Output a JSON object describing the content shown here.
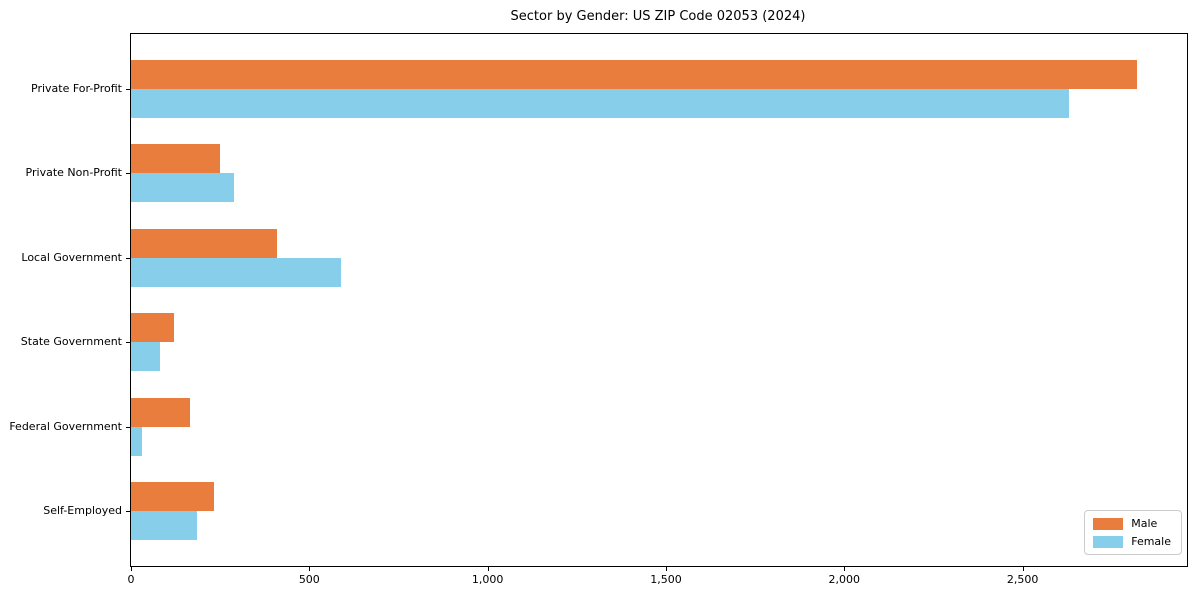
{
  "title": "Sector by Gender: US ZIP Code 02053 (2024)",
  "chart_data": {
    "type": "bar",
    "orientation": "horizontal",
    "title": "Sector by Gender: US ZIP Code 02053 (2024)",
    "xlabel": "",
    "ylabel": "",
    "categories": [
      "Private For-Profit",
      "Private Non-Profit",
      "Local Government",
      "State Government",
      "Federal Government",
      "Self-Employed"
    ],
    "series": [
      {
        "name": "Male",
        "color": "#e87d3e",
        "values": [
          2820,
          250,
          410,
          120,
          165,
          233
        ]
      },
      {
        "name": "Female",
        "color": "#87ceeb",
        "values": [
          2630,
          290,
          590,
          80,
          30,
          186
        ]
      }
    ],
    "xlim": [
      0,
      2961
    ],
    "x_ticks": [
      0,
      500,
      1000,
      1500,
      2000,
      2500
    ],
    "x_tick_labels": [
      "0",
      "500",
      "1,000",
      "1,500",
      "2,000",
      "2,500"
    ],
    "grid": false,
    "legend_position": "lower right"
  }
}
